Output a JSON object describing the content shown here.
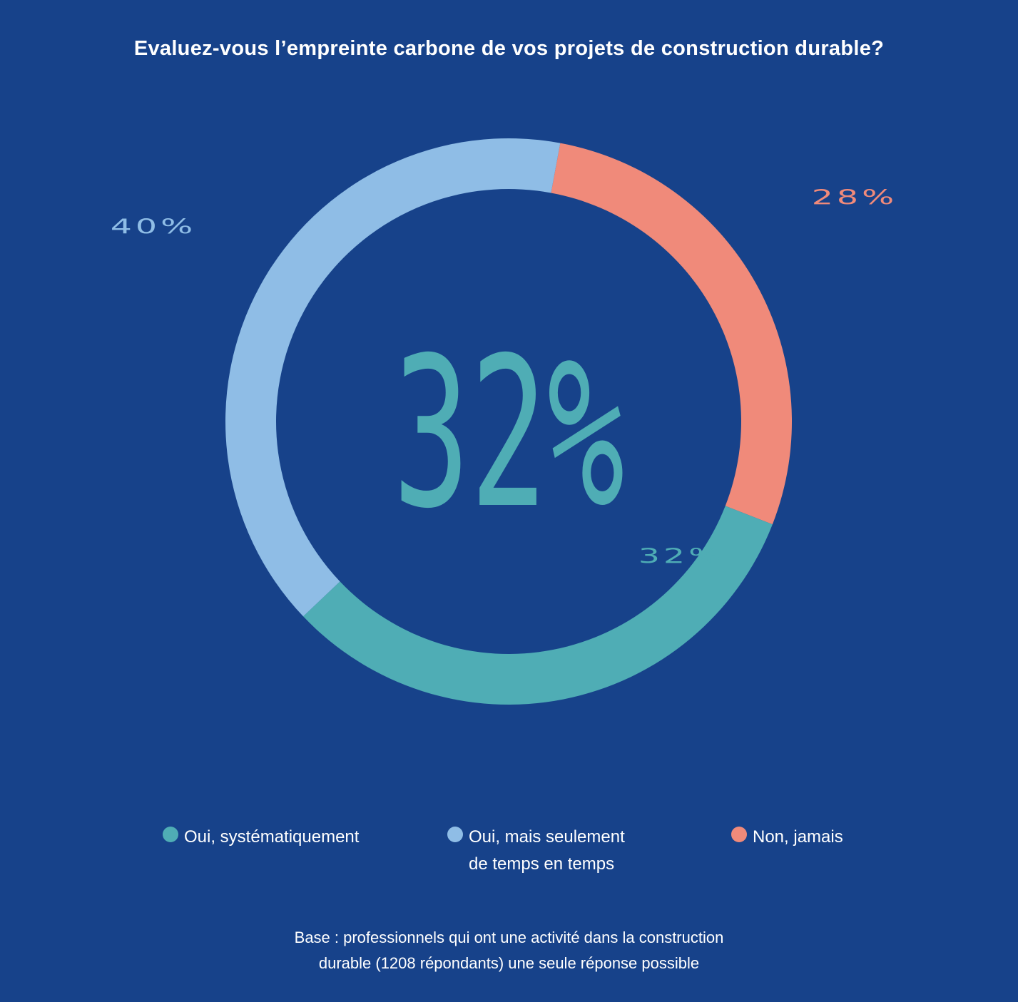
{
  "chart_data": {
    "type": "pie",
    "donut": true,
    "title": "Evaluez-vous l’empreinte carbone de vos projets de construction durable?",
    "center_label": "32%",
    "slices": [
      {
        "name": "Non, jamais",
        "value": 28,
        "label": "28%",
        "color": "#f08a7a"
      },
      {
        "name": "Oui, systématiquement",
        "value": 32,
        "label": "32%",
        "color": "#4fadb5"
      },
      {
        "name": "Oui, mais seulement de temps en temps",
        "value": 40,
        "label": "40%",
        "color": "#8fbde6"
      }
    ],
    "start_angle_deg": 10.5,
    "legend": [
      {
        "line1": "Oui, systématiquement",
        "line2": "",
        "color": "#4fadb5"
      },
      {
        "line1": "Oui, mais seulement",
        "line2": "de temps en temps",
        "color": "#8fbde6"
      },
      {
        "line1": "Non, jamais",
        "line2": "",
        "color": "#f08a7a"
      }
    ],
    "legend_position": "bottom"
  },
  "footnote": {
    "line1": "Base : professionnels qui ont une activité dans la construction",
    "line2": "durable (1208 répondants) une seule réponse possible"
  },
  "colors": {
    "background": "#17428a"
  }
}
